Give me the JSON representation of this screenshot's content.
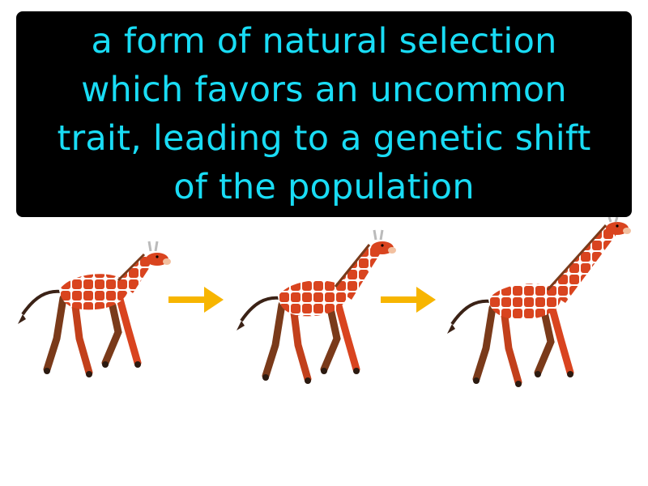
{
  "definition": {
    "lines": [
      "a form of natural selection",
      "which favors an uncommon",
      "trait, leading to a genetic shift",
      "of the population"
    ]
  },
  "colors": {
    "text": "#19dcf5",
    "box": "#000000",
    "arrow": "#f7b500",
    "giraffe_base": "#d9441f",
    "giraffe_pattern": "#ffffff",
    "giraffe_hoof": "#4a2a1a"
  },
  "illustration": {
    "giraffes": [
      {
        "icon": "giraffe-icon",
        "neck": "short"
      },
      {
        "icon": "giraffe-icon",
        "neck": "medium"
      },
      {
        "icon": "giraffe-icon",
        "neck": "long"
      }
    ],
    "arrows": [
      {
        "icon": "right-arrow-icon"
      },
      {
        "icon": "right-arrow-icon"
      }
    ]
  }
}
